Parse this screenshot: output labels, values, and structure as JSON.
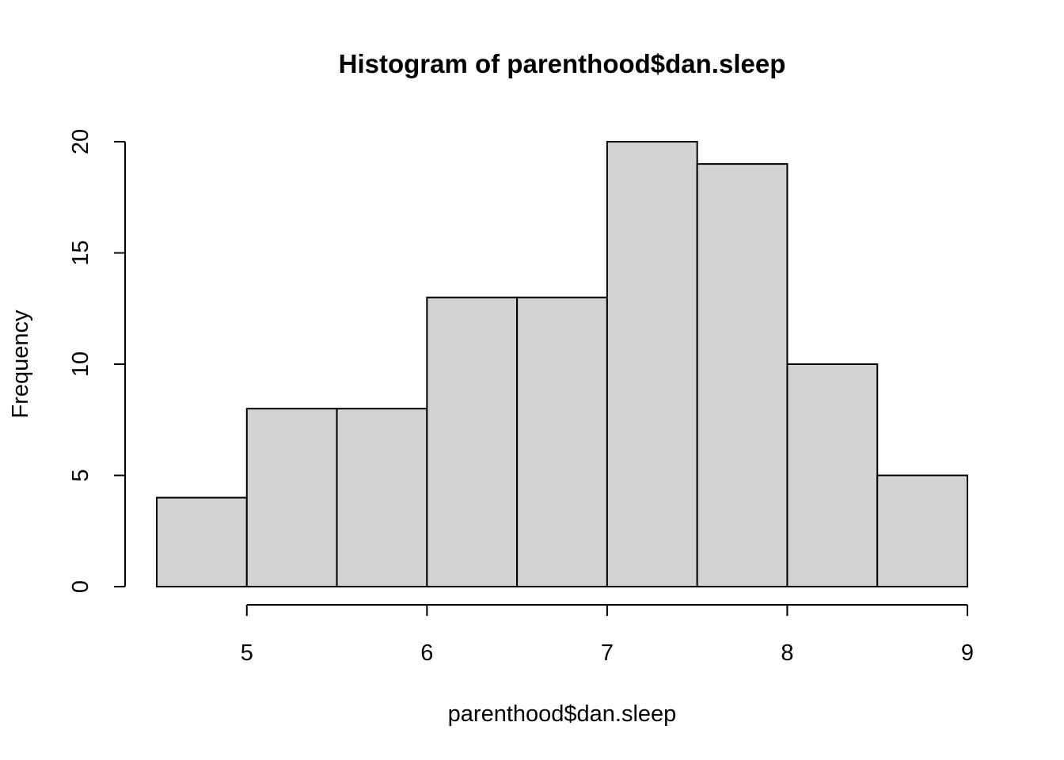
{
  "chart_data": {
    "type": "bar",
    "title": "Histogram of parenthood$dan.sleep",
    "xlabel": "parenthood$dan.sleep",
    "ylabel": "Frequency",
    "bins": [
      {
        "x0": 4.5,
        "x1": 5.0,
        "count": 4
      },
      {
        "x0": 5.0,
        "x1": 5.5,
        "count": 8
      },
      {
        "x0": 5.5,
        "x1": 6.0,
        "count": 8
      },
      {
        "x0": 6.0,
        "x1": 6.5,
        "count": 13
      },
      {
        "x0": 6.5,
        "x1": 7.0,
        "count": 13
      },
      {
        "x0": 7.0,
        "x1": 7.5,
        "count": 20
      },
      {
        "x0": 7.5,
        "x1": 8.0,
        "count": 19
      },
      {
        "x0": 8.0,
        "x1": 8.5,
        "count": 10
      },
      {
        "x0": 8.5,
        "x1": 9.0,
        "count": 5
      }
    ],
    "xlim": [
      4.5,
      9
    ],
    "ylim": [
      0,
      20
    ],
    "x_ticks": [
      5,
      6,
      7,
      8,
      9
    ],
    "y_ticks": [
      0,
      5,
      10,
      15,
      20
    ],
    "bar_color": "#d3d3d3",
    "grid": false,
    "legend": false
  }
}
